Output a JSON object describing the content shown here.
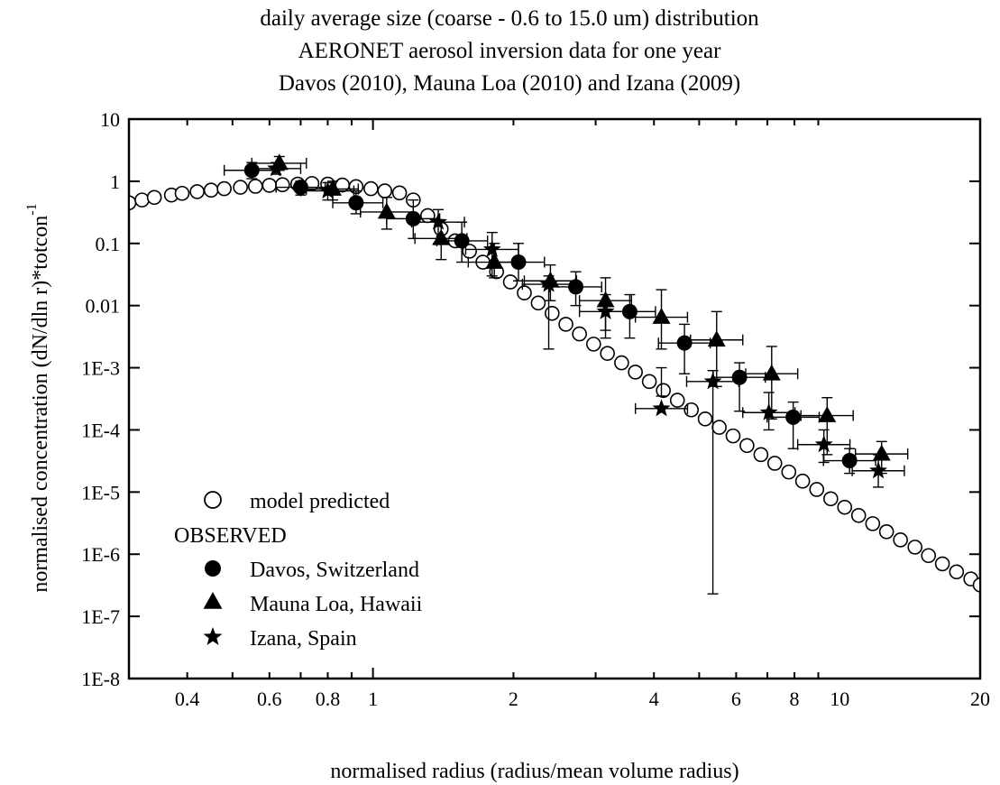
{
  "chart_data": {
    "type": "scatter",
    "title": [
      "daily average size (coarse - 0.6 to 15.0 um) distribution",
      "AERONET aerosol inversion data for one year",
      "Davos (2010), Mauna Loa (2010) and Izana (2009)"
    ],
    "xlabel": "normalised radius (radius/mean volume radius)",
    "ylabel": "normalised concentration (dN/dln r)*totcon",
    "ylabel_superscript": "-1",
    "xscale": "log",
    "yscale": "log",
    "xlim": [
      0.3,
      20
    ],
    "ylim": [
      1e-08,
      10
    ],
    "x_ticks": [
      {
        "value": 0.4,
        "label": "0.4"
      },
      {
        "value": 0.6,
        "label": "0.6"
      },
      {
        "value": 0.8,
        "label": "0.8"
      },
      {
        "value": 1,
        "label": "1"
      },
      {
        "value": 2,
        "label": "2"
      },
      {
        "value": 4,
        "label": "4"
      },
      {
        "value": 6,
        "label": "6"
      },
      {
        "value": 8,
        "label": "8"
      },
      {
        "value": 10,
        "label": "10"
      },
      {
        "value": 20,
        "label": "20"
      }
    ],
    "y_ticks": [
      {
        "value": 10,
        "label": "10"
      },
      {
        "value": 1,
        "label": "1"
      },
      {
        "value": 0.1,
        "label": "0.1"
      },
      {
        "value": 0.01,
        "label": "0.01"
      },
      {
        "value": 0.001,
        "label": "1E-3"
      },
      {
        "value": 0.0001,
        "label": "1E-4"
      },
      {
        "value": 1e-05,
        "label": "1E-5"
      },
      {
        "value": 1e-06,
        "label": "1E-6"
      },
      {
        "value": 1e-07,
        "label": "1E-7"
      },
      {
        "value": 1e-08,
        "label": "1E-8"
      }
    ],
    "grid": false,
    "legend_position": "bottom-left",
    "legend_heading": "OBSERVED",
    "series": [
      {
        "name": "model predicted",
        "marker": "open-circle",
        "x": [
          0.3,
          0.32,
          0.34,
          0.37,
          0.39,
          0.42,
          0.45,
          0.48,
          0.52,
          0.56,
          0.6,
          0.64,
          0.69,
          0.74,
          0.8,
          0.86,
          0.92,
          0.99,
          1.06,
          1.14,
          1.22,
          1.31,
          1.4,
          1.5,
          1.61,
          1.72,
          1.84,
          1.97,
          2.11,
          2.26,
          2.42,
          2.59,
          2.77,
          2.97,
          3.18,
          3.41,
          3.65,
          3.91,
          4.19,
          4.49,
          4.81,
          5.15,
          5.52,
          5.91,
          6.33,
          6.78,
          7.26,
          7.78,
          8.33,
          8.93,
          9.57,
          10.25,
          10.98,
          11.77,
          12.6,
          13.5,
          14.5,
          15.5,
          16.6,
          17.8,
          19.1,
          20
        ],
        "y": [
          0.45,
          0.5,
          0.55,
          0.6,
          0.64,
          0.68,
          0.72,
          0.76,
          0.8,
          0.83,
          0.86,
          0.88,
          0.9,
          0.92,
          0.9,
          0.87,
          0.82,
          0.76,
          0.7,
          0.65,
          0.5,
          0.28,
          0.17,
          0.11,
          0.075,
          0.05,
          0.035,
          0.024,
          0.016,
          0.011,
          0.0075,
          0.005,
          0.0035,
          0.0024,
          0.0017,
          0.0012,
          0.00085,
          0.0006,
          0.00043,
          0.0003,
          0.00021,
          0.00015,
          0.00011,
          8e-05,
          5.6e-05,
          4e-05,
          2.9e-05,
          2.1e-05,
          1.5e-05,
          1.1e-05,
          7.8e-06,
          5.7e-06,
          4.2e-06,
          3.1e-06,
          2.3e-06,
          1.7e-06,
          1.3e-06,
          9.5e-07,
          7e-07,
          5.2e-07,
          4e-07,
          3.2e-07
        ]
      },
      {
        "name": "Davos, Switzerland",
        "marker": "filled-circle",
        "points": [
          {
            "x": 0.55,
            "y": 1.5,
            "xerr": [
              0.48,
              0.63
            ],
            "yerr": [
              1.1,
              2.0
            ]
          },
          {
            "x": 0.7,
            "y": 0.8,
            "xerr": [
              0.62,
              0.79
            ],
            "yerr": [
              0.6,
              1.0
            ]
          },
          {
            "x": 0.92,
            "y": 0.45,
            "xerr": [
              0.82,
              1.05
            ],
            "yerr": [
              0.3,
              0.7
            ]
          },
          {
            "x": 1.22,
            "y": 0.25,
            "xerr": [
              1.07,
              1.39
            ],
            "yerr": [
              0.12,
              0.5
            ]
          },
          {
            "x": 1.55,
            "y": 0.11,
            "xerr": [
              1.37,
              1.76
            ],
            "yerr": [
              0.05,
              0.22
            ]
          },
          {
            "x": 2.05,
            "y": 0.05,
            "xerr": [
              1.81,
              2.33
            ],
            "yerr": [
              0.025,
              0.1
            ]
          },
          {
            "x": 2.72,
            "y": 0.02,
            "xerr": [
              2.39,
              3.09
            ],
            "yerr": [
              0.01,
              0.035
            ]
          },
          {
            "x": 3.55,
            "y": 0.008,
            "xerr": [
              3.12,
              4.03
            ],
            "yerr": [
              0.003,
              0.015
            ]
          },
          {
            "x": 4.65,
            "y": 0.0025,
            "xerr": [
              4.09,
              5.28
            ],
            "yerr": [
              0.0008,
              0.005
            ]
          },
          {
            "x": 6.1,
            "y": 0.0007,
            "xerr": [
              5.36,
              6.93
            ],
            "yerr": [
              0.0002,
              0.0012
            ]
          },
          {
            "x": 7.95,
            "y": 0.00016,
            "xerr": [
              6.99,
              9.04
            ],
            "yerr": [
              5e-05,
              0.00028
            ]
          },
          {
            "x": 10.5,
            "y": 3.2e-05,
            "xerr": [
              9.23,
              11.94
            ],
            "yerr": [
              2e-05,
              5e-05
            ]
          }
        ]
      },
      {
        "name": "Mauna Loa, Hawaii",
        "marker": "filled-triangle",
        "points": [
          {
            "x": 0.63,
            "y": 1.95,
            "xerr": [
              0.55,
              0.72
            ],
            "yerr": [
              1.5,
              2.5
            ]
          },
          {
            "x": 0.82,
            "y": 0.75,
            "xerr": [
              0.72,
              0.93
            ],
            "yerr": [
              0.5,
              1.0
            ]
          },
          {
            "x": 1.07,
            "y": 0.32,
            "xerr": [
              0.94,
              1.22
            ],
            "yerr": [
              0.17,
              0.55
            ]
          },
          {
            "x": 1.4,
            "y": 0.12,
            "xerr": [
              1.23,
              1.59
            ],
            "yerr": [
              0.055,
              0.22
            ]
          },
          {
            "x": 1.82,
            "y": 0.05,
            "xerr": [
              1.6,
              2.07
            ],
            "yerr": [
              0.028,
              0.1
            ]
          },
          {
            "x": 2.4,
            "y": 0.025,
            "xerr": [
              2.11,
              2.73
            ],
            "yerr": [
              0.012,
              0.045
            ]
          },
          {
            "x": 3.15,
            "y": 0.012,
            "xerr": [
              2.77,
              3.58
            ],
            "yerr": [
              0.004,
              0.028
            ]
          },
          {
            "x": 4.15,
            "y": 0.0065,
            "xerr": [
              3.65,
              4.72
            ],
            "yerr": [
              0.002,
              0.018
            ]
          },
          {
            "x": 5.45,
            "y": 0.0028,
            "xerr": [
              4.79,
              6.2
            ],
            "yerr": [
              0.0005,
              0.008
            ]
          },
          {
            "x": 7.15,
            "y": 0.0008,
            "xerr": [
              6.29,
              8.13
            ],
            "yerr": [
              0.00015,
              0.0022
            ]
          },
          {
            "x": 9.4,
            "y": 0.00017,
            "xerr": [
              8.26,
              10.69
            ],
            "yerr": [
              4e-05,
              0.00033
            ]
          },
          {
            "x": 12.3,
            "y": 4.1e-05,
            "xerr": [
              10.81,
              13.99
            ],
            "yerr": [
              2e-05,
              6.5e-05
            ]
          }
        ]
      },
      {
        "name": "Izana, Spain",
        "marker": "filled-star",
        "points": [
          {
            "x": 0.62,
            "y": 1.6,
            "xerr": [
              0.55,
              0.7
            ],
            "yerr": [
              1.3,
              2.0
            ]
          },
          {
            "x": 0.8,
            "y": 0.7,
            "xerr": [
              0.7,
              0.91
            ],
            "yerr": [
              0.5,
              0.95
            ]
          },
          {
            "x": 1.38,
            "y": 0.22,
            "xerr": [
              1.21,
              1.57
            ],
            "yerr": [
              0.1,
              0.35
            ]
          },
          {
            "x": 1.8,
            "y": 0.08,
            "xerr": [
              1.58,
              2.05
            ],
            "yerr": [
              0.03,
              0.15
            ]
          },
          {
            "x": 2.38,
            "y": 0.022,
            "xerr": [
              2.09,
              2.71
            ],
            "yerr": [
              0.002,
              0.03
            ]
          },
          {
            "x": 3.15,
            "y": 0.008,
            "xerr": [
              2.77,
              3.58
            ],
            "yerr": [
              0.003,
              0.015
            ]
          },
          {
            "x": 4.15,
            "y": 0.00022,
            "xerr": [
              3.65,
              4.72
            ],
            "yerr": [
              0.00035,
              0.001
            ]
          },
          {
            "x": 5.35,
            "y": 0.0006,
            "xerr": [
              4.7,
              6.08
            ],
            "yerr": [
              2.3e-07,
              0.0009
            ]
          },
          {
            "x": 7.05,
            "y": 0.00019,
            "xerr": [
              6.2,
              8.02
            ],
            "yerr": [
              0.0001,
              0.0004
            ]
          },
          {
            "x": 9.25,
            "y": 5.8e-05,
            "xerr": [
              8.13,
              10.52
            ],
            "yerr": [
              3e-05,
              0.0001
            ]
          },
          {
            "x": 12.1,
            "y": 2.2e-05,
            "xerr": [
              10.64,
              13.76
            ],
            "yerr": [
              1.2e-05,
              4e-05
            ]
          }
        ]
      }
    ]
  }
}
